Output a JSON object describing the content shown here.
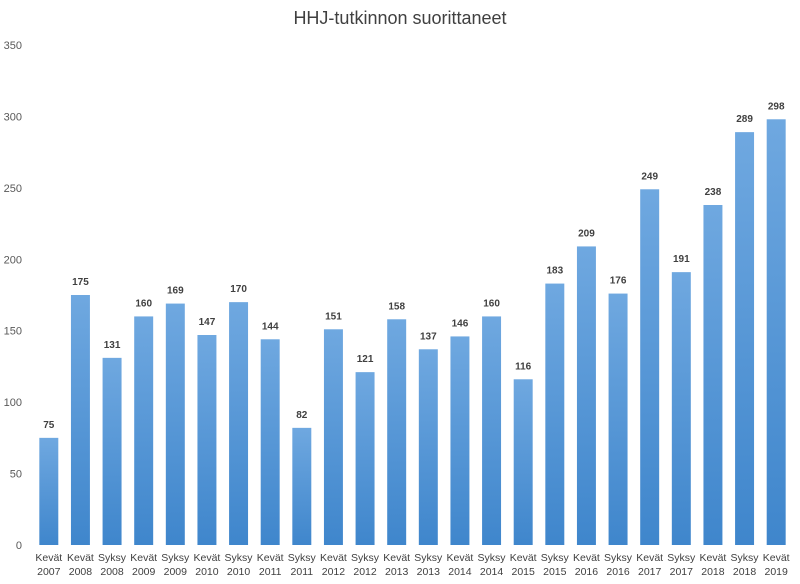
{
  "chart_data": {
    "type": "bar",
    "title": "HHJ-tutkinnon suorittaneet",
    "xlabel": "",
    "ylabel": "",
    "ylim": [
      0,
      350
    ],
    "yticks": [
      0,
      50,
      100,
      150,
      200,
      250,
      300,
      350
    ],
    "grid": false,
    "legend": "none",
    "bar_color_top": "#6fa8e0",
    "bar_color_bottom": "#3f86cc",
    "categories": [
      [
        "Kevät",
        "2007"
      ],
      [
        "Kevät",
        "2008"
      ],
      [
        "Syksy",
        "2008"
      ],
      [
        "Kevät",
        "2009"
      ],
      [
        "Syksy",
        "2009"
      ],
      [
        "Kevät",
        "2010"
      ],
      [
        "Syksy",
        "2010"
      ],
      [
        "Kevät",
        "2011"
      ],
      [
        "Syksy",
        "2011"
      ],
      [
        "Kevät",
        "2012"
      ],
      [
        "Syksy",
        "2012"
      ],
      [
        "Kevät",
        "2013"
      ],
      [
        "Syksy",
        "2013"
      ],
      [
        "Kevät",
        "2014"
      ],
      [
        "Syksy",
        "2014"
      ],
      [
        "Kevät",
        "2015"
      ],
      [
        "Syksy",
        "2015"
      ],
      [
        "Kevät",
        "2016"
      ],
      [
        "Syksy",
        "2016"
      ],
      [
        "Kevät",
        "2017"
      ],
      [
        "Syksy",
        "2017"
      ],
      [
        "Kevät",
        "2018"
      ],
      [
        "Syksy",
        "2018"
      ],
      [
        "Kevät",
        "2019"
      ]
    ],
    "values": [
      75,
      175,
      131,
      160,
      169,
      147,
      170,
      144,
      82,
      151,
      121,
      158,
      137,
      146,
      160,
      116,
      183,
      209,
      176,
      249,
      191,
      238,
      289,
      298
    ]
  }
}
